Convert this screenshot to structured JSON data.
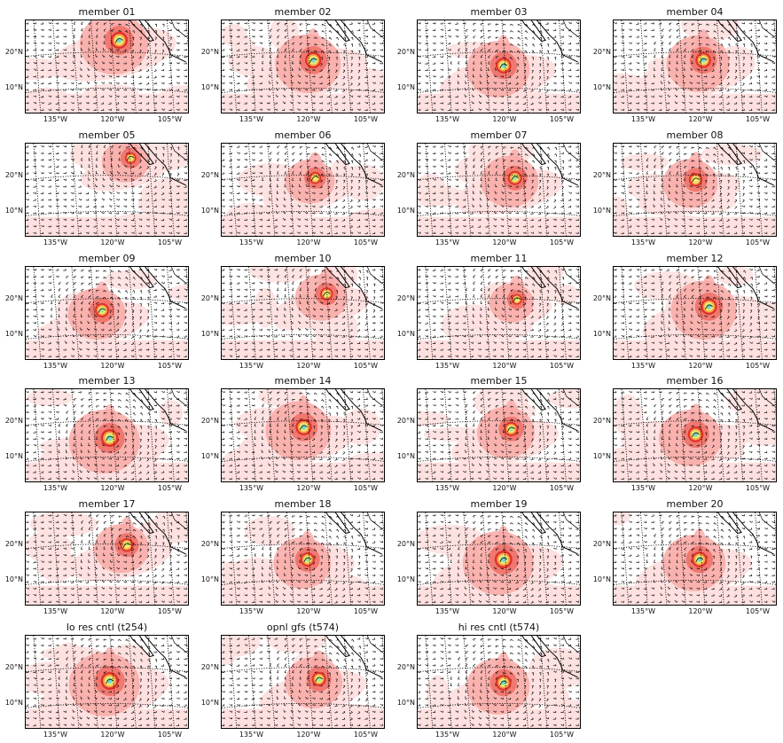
{
  "panels": [
    {
      "title": "member 01",
      "storm": {
        "lon": -118.5,
        "lat": 23.5,
        "strength": 0.95
      }
    },
    {
      "title": "member 02",
      "storm": {
        "lon": -119.0,
        "lat": 18.0,
        "strength": 0.9
      }
    },
    {
      "title": "member 03",
      "storm": {
        "lon": -120.5,
        "lat": 16.5,
        "strength": 0.85
      }
    },
    {
      "title": "member 04",
      "storm": {
        "lon": -119.5,
        "lat": 18.0,
        "strength": 0.85
      }
    },
    {
      "title": "member 05",
      "storm": {
        "lon": -115.5,
        "lat": 25.0,
        "strength": 0.55
      }
    },
    {
      "title": "member 06",
      "storm": {
        "lon": -118.5,
        "lat": 19.5,
        "strength": 0.6
      }
    },
    {
      "title": "member 07",
      "storm": {
        "lon": -117.5,
        "lat": 19.5,
        "strength": 0.75
      }
    },
    {
      "title": "member 08",
      "storm": {
        "lon": -121.5,
        "lat": 19.0,
        "strength": 0.7
      }
    },
    {
      "title": "member 09",
      "storm": {
        "lon": -123.0,
        "lat": 17.0,
        "strength": 0.75
      }
    },
    {
      "title": "member 10",
      "storm": {
        "lon": -115.5,
        "lat": 21.5,
        "strength": 0.65
      }
    },
    {
      "title": "member 11",
      "storm": {
        "lon": -117.0,
        "lat": 20.0,
        "strength": 0.5
      }
    },
    {
      "title": "member 12",
      "storm": {
        "lon": -118.0,
        "lat": 18.0,
        "strength": 0.9
      }
    },
    {
      "title": "member 13",
      "storm": {
        "lon": -121.0,
        "lat": 15.5,
        "strength": 1.0
      }
    },
    {
      "title": "member 14",
      "storm": {
        "lon": -121.5,
        "lat": 18.5,
        "strength": 0.9
      }
    },
    {
      "title": "member 15",
      "storm": {
        "lon": -118.5,
        "lat": 18.0,
        "strength": 0.75
      }
    },
    {
      "title": "member 16",
      "storm": {
        "lon": -121.5,
        "lat": 16.5,
        "strength": 0.85
      }
    },
    {
      "title": "member 17",
      "storm": {
        "lon": -116.5,
        "lat": 20.0,
        "strength": 0.7
      }
    },
    {
      "title": "member 18",
      "storm": {
        "lon": -120.5,
        "lat": 16.0,
        "strength": 0.75
      }
    },
    {
      "title": "member 19",
      "storm": {
        "lon": -120.5,
        "lat": 16.0,
        "strength": 1.0
      }
    },
    {
      "title": "member 20",
      "storm": {
        "lon": -120.5,
        "lat": 16.0,
        "strength": 0.85
      }
    },
    {
      "title": "lo res cntl (t254)",
      "storm": {
        "lon": -121.0,
        "lat": 16.5,
        "strength": 1.0
      }
    },
    {
      "title": "opnl gfs (t574)",
      "storm": {
        "lon": -117.5,
        "lat": 17.0,
        "strength": 0.75
      }
    },
    {
      "title": "hi res cntl (t574)",
      "storm": {
        "lon": -120.5,
        "lat": 16.0,
        "strength": 0.85
      }
    }
  ],
  "axes": {
    "lon_ticks": [
      "135°W",
      "120°W",
      "105°W"
    ],
    "lat_ticks": [
      "20°N",
      "10°N"
    ],
    "lon_values": [
      -135,
      -120,
      -105
    ],
    "lat_values": [
      20,
      10
    ],
    "lon_range": [
      -143,
      -100
    ],
    "lat_range": [
      3,
      29
    ]
  },
  "colors": {
    "field_light": "#fde0df",
    "field_mid": "#f9a9a6",
    "field_strong": "#f07870",
    "core_red": "#e0302a",
    "core_orange": "#f6a04a",
    "core_yellow": "#f0e870",
    "core_green": "#9fe79a",
    "core_cyan": "#6fd6d8",
    "coast": "#000000"
  }
}
